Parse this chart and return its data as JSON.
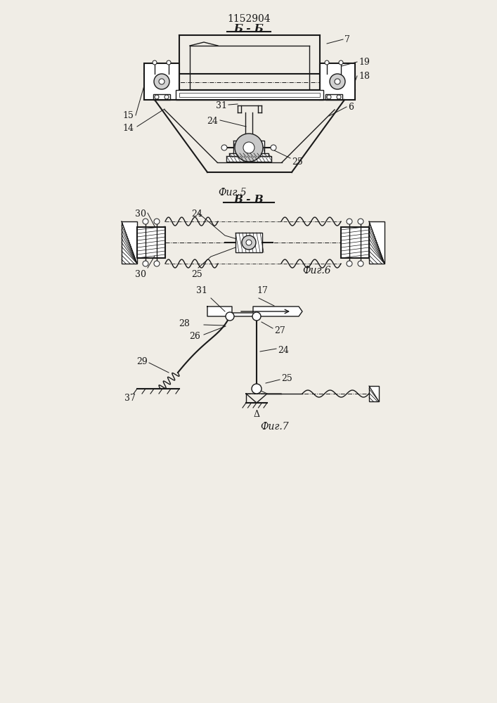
{
  "title": "1152904",
  "bg_color": "#f0ede6",
  "line_color": "#1a1a1a",
  "fig5_label": "Фиг.5",
  "fig6_label": "Фиг.6",
  "fig7_label": "Фиг.7",
  "section_bb": "Б - Б",
  "section_vv": "В - В"
}
